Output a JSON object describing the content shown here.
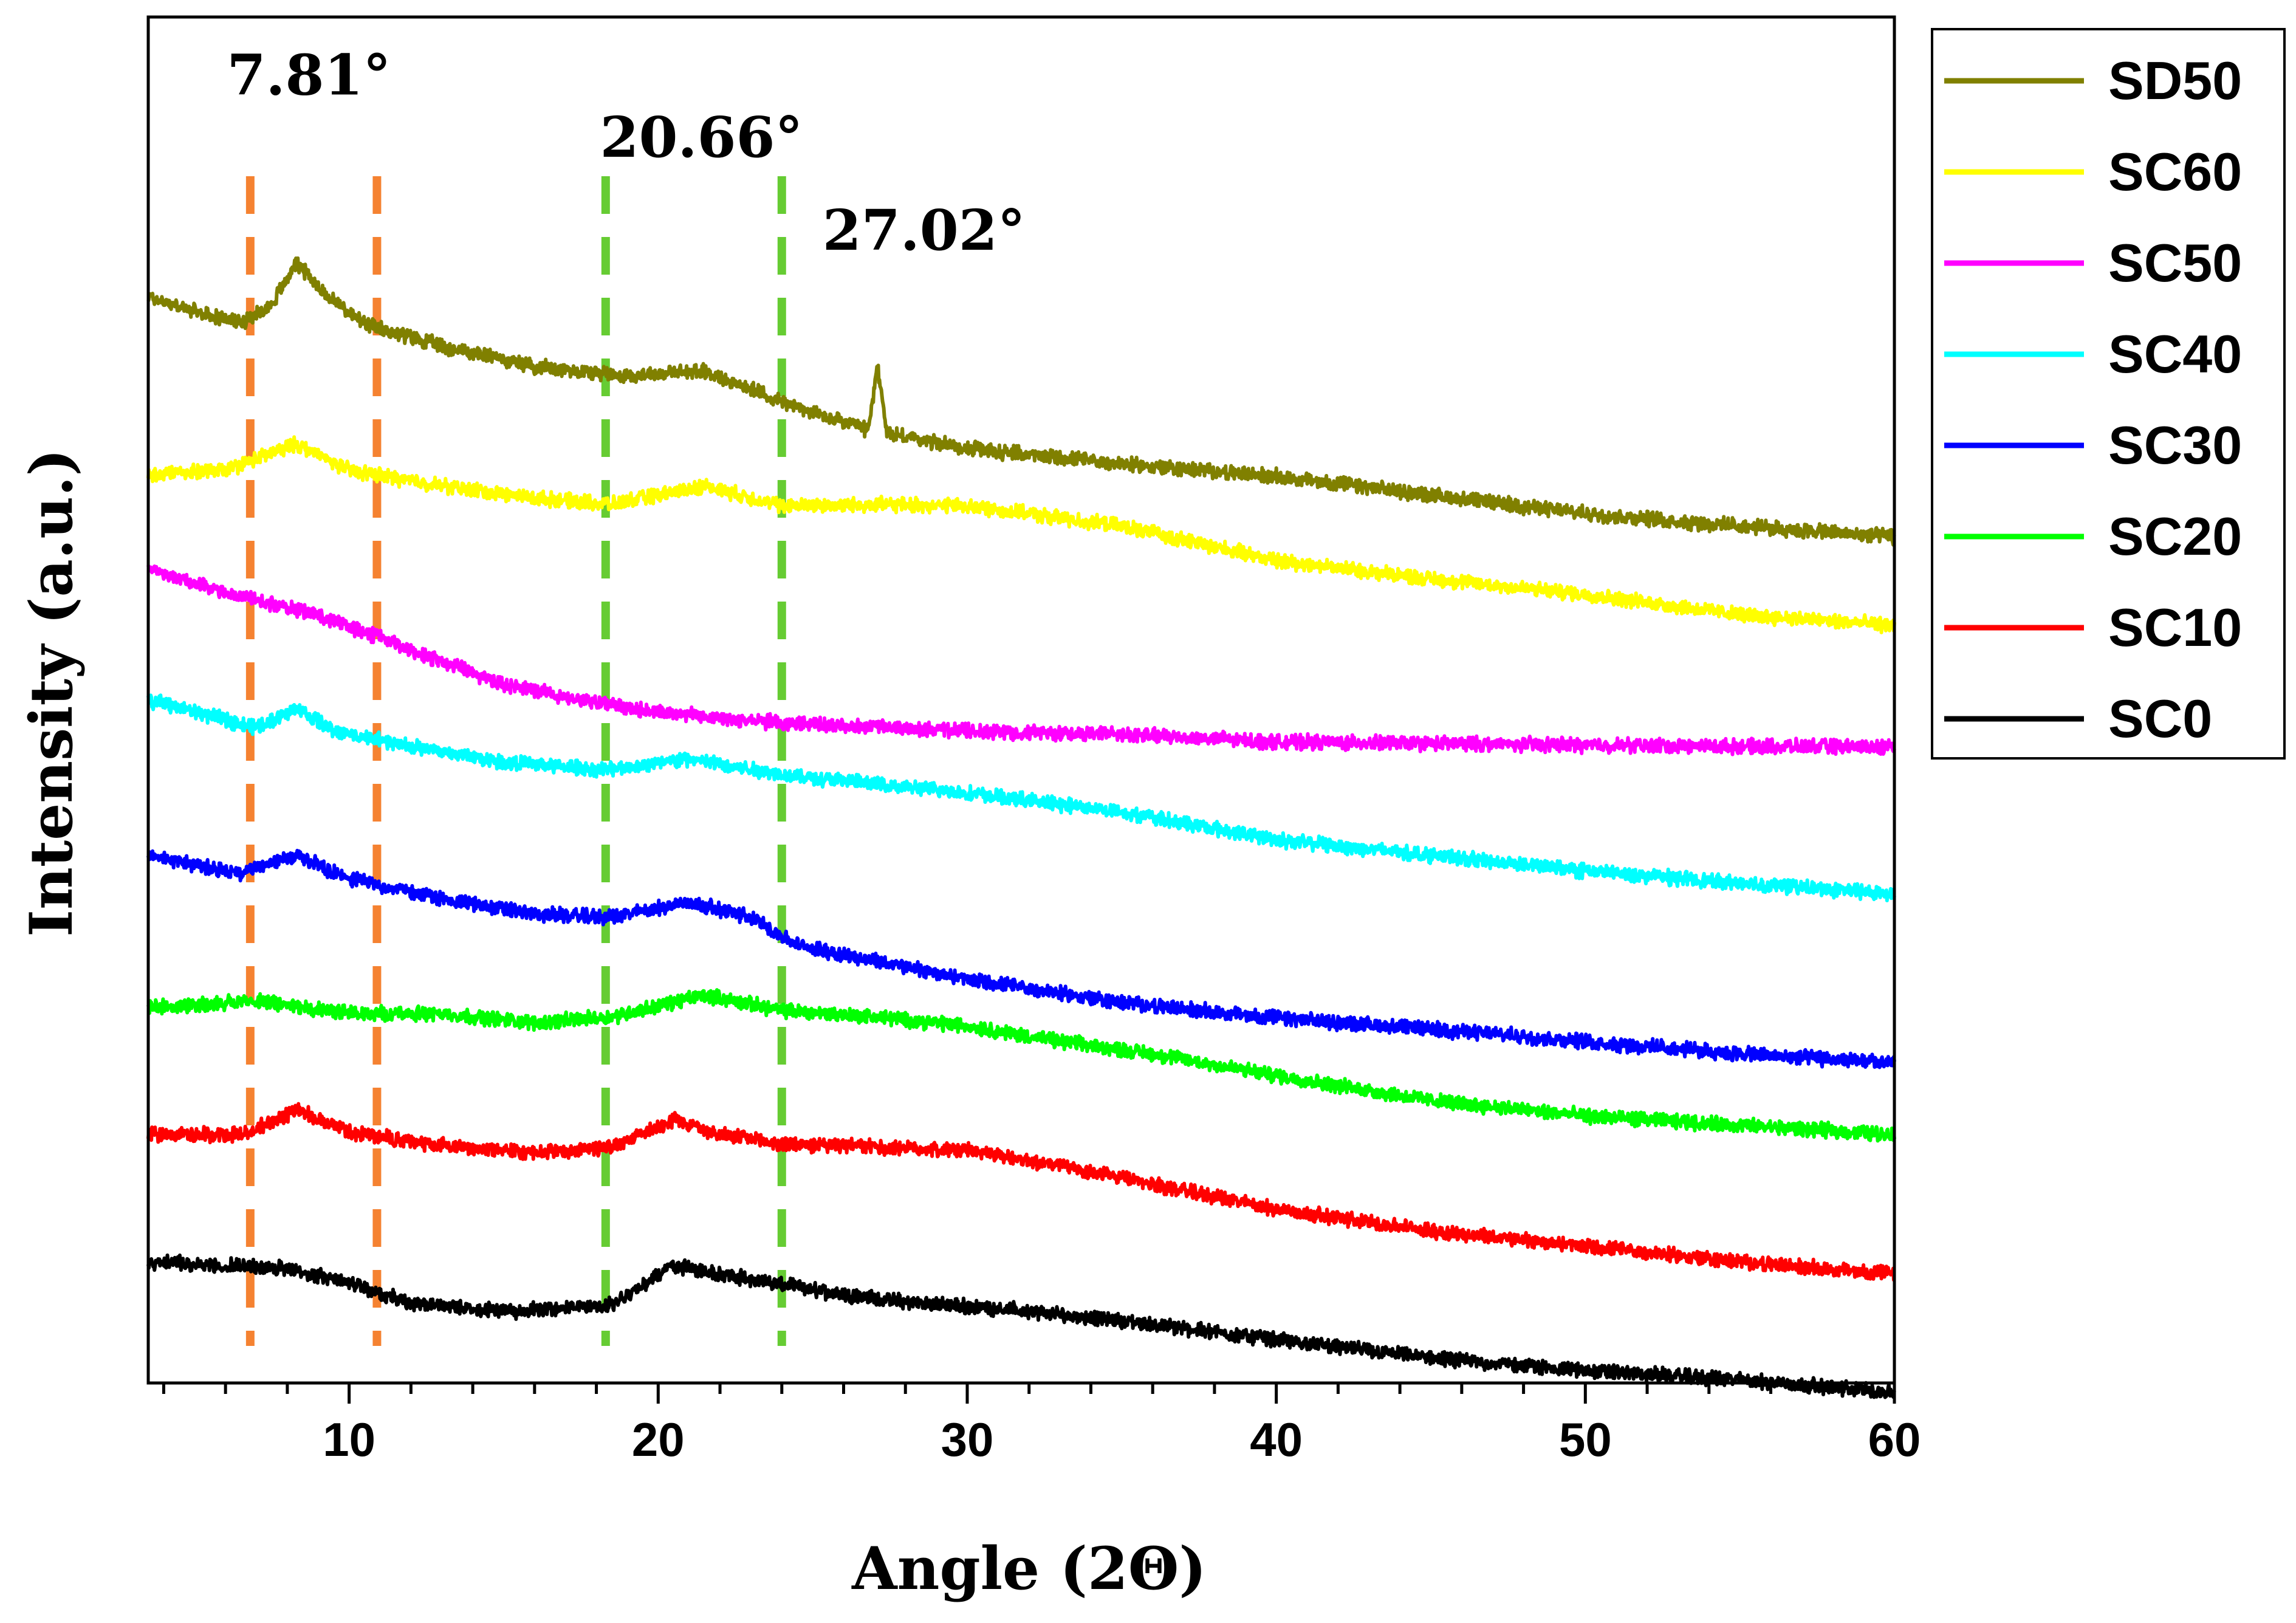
{
  "chart_data": {
    "type": "line",
    "title": "",
    "xlabel": "Angle (2Θ)",
    "ylabel": "Intensity (a.u.)",
    "xlim": [
      3.5,
      60
    ],
    "ylim": [
      0,
      8.8
    ],
    "x_ticks": [
      10,
      20,
      30,
      40,
      50,
      60
    ],
    "x_minor_step": 2,
    "y_ticks_shown": false,
    "grid": false,
    "legend_position": "outside-right-top",
    "annotations": [
      {
        "text": "7.81°",
        "x": 8.7,
        "y": 8.3
      },
      {
        "text": "20.66°",
        "x": 21.4,
        "y": 7.9
      },
      {
        "text": "27.02°",
        "x": 28.6,
        "y": 7.3
      }
    ],
    "reference_lines": [
      {
        "x": 6.8,
        "color": "#F58231",
        "style": "dashed"
      },
      {
        "x": 10.9,
        "color": "#F58231",
        "style": "dashed"
      },
      {
        "x": 18.3,
        "color": "#66CC33",
        "style": "dashed"
      },
      {
        "x": 24.0,
        "color": "#66CC33",
        "style": "dashed"
      }
    ],
    "series": [
      {
        "name": "SD50",
        "color": "#808000",
        "points": [
          [
            3.5,
            7.0
          ],
          [
            5,
            6.9
          ],
          [
            6.5,
            6.83
          ],
          [
            7.5,
            6.95
          ],
          [
            8.3,
            7.22
          ],
          [
            9.2,
            7.02
          ],
          [
            10.5,
            6.82
          ],
          [
            13,
            6.68
          ],
          [
            16,
            6.55
          ],
          [
            19,
            6.49
          ],
          [
            21.5,
            6.52
          ],
          [
            23,
            6.4
          ],
          [
            25,
            6.25
          ],
          [
            26.8,
            6.14
          ],
          [
            27.1,
            6.55
          ],
          [
            27.4,
            6.12
          ],
          [
            30,
            6.02
          ],
          [
            35,
            5.92
          ],
          [
            40,
            5.84
          ],
          [
            45,
            5.72
          ],
          [
            50,
            5.6
          ],
          [
            55,
            5.52
          ],
          [
            60,
            5.45
          ]
        ]
      },
      {
        "name": "SC60",
        "color": "#FFFF00",
        "points": [
          [
            3.5,
            5.85
          ],
          [
            6,
            5.88
          ],
          [
            8.3,
            6.05
          ],
          [
            10,
            5.88
          ],
          [
            13,
            5.78
          ],
          [
            16,
            5.7
          ],
          [
            18.5,
            5.66
          ],
          [
            21.5,
            5.78
          ],
          [
            24,
            5.65
          ],
          [
            27,
            5.66
          ],
          [
            30,
            5.65
          ],
          [
            35,
            5.52
          ],
          [
            40,
            5.3
          ],
          [
            45,
            5.18
          ],
          [
            50,
            5.08
          ],
          [
            55,
            4.95
          ],
          [
            60,
            4.88
          ]
        ]
      },
      {
        "name": "SC50",
        "color": "#FF00FF",
        "points": [
          [
            3.5,
            5.25
          ],
          [
            5,
            5.15
          ],
          [
            7,
            5.04
          ],
          [
            9,
            4.95
          ],
          [
            11,
            4.8
          ],
          [
            13,
            4.65
          ],
          [
            15,
            4.5
          ],
          [
            17,
            4.42
          ],
          [
            20,
            4.32
          ],
          [
            24,
            4.25
          ],
          [
            30,
            4.2
          ],
          [
            35,
            4.18
          ],
          [
            40,
            4.13
          ],
          [
            45,
            4.12
          ],
          [
            50,
            4.11
          ],
          [
            55,
            4.1
          ],
          [
            60,
            4.1
          ]
        ]
      },
      {
        "name": "SC40",
        "color": "#00FFFF",
        "points": [
          [
            3.5,
            4.4
          ],
          [
            5.5,
            4.3
          ],
          [
            7,
            4.22
          ],
          [
            8.3,
            4.35
          ],
          [
            9.5,
            4.2
          ],
          [
            12,
            4.1
          ],
          [
            15,
            4.0
          ],
          [
            18.3,
            3.95
          ],
          [
            21,
            4.02
          ],
          [
            24,
            3.92
          ],
          [
            27,
            3.86
          ],
          [
            30,
            3.8
          ],
          [
            35,
            3.68
          ],
          [
            40,
            3.5
          ],
          [
            45,
            3.4
          ],
          [
            50,
            3.3
          ],
          [
            55,
            3.22
          ],
          [
            60,
            3.15
          ]
        ]
      },
      {
        "name": "SC30",
        "color": "#0000FF",
        "points": [
          [
            3.5,
            3.4
          ],
          [
            6.5,
            3.28
          ],
          [
            8.3,
            3.4
          ],
          [
            10,
            3.25
          ],
          [
            13,
            3.12
          ],
          [
            16,
            3.02
          ],
          [
            18.5,
            3.0
          ],
          [
            21,
            3.1
          ],
          [
            23,
            3.0
          ],
          [
            24.5,
            2.82
          ],
          [
            27,
            2.72
          ],
          [
            30,
            2.6
          ],
          [
            35,
            2.45
          ],
          [
            40,
            2.35
          ],
          [
            45,
            2.28
          ],
          [
            50,
            2.2
          ],
          [
            55,
            2.12
          ],
          [
            60,
            2.06
          ]
        ]
      },
      {
        "name": "SC20",
        "color": "#00FF00",
        "points": [
          [
            3.5,
            2.42
          ],
          [
            7,
            2.46
          ],
          [
            10,
            2.38
          ],
          [
            13,
            2.38
          ],
          [
            16,
            2.32
          ],
          [
            18.5,
            2.36
          ],
          [
            21.5,
            2.5
          ],
          [
            24,
            2.4
          ],
          [
            27,
            2.36
          ],
          [
            30,
            2.3
          ],
          [
            33,
            2.2
          ],
          [
            36,
            2.12
          ],
          [
            40,
            1.98
          ],
          [
            45,
            1.82
          ],
          [
            50,
            1.72
          ],
          [
            55,
            1.66
          ],
          [
            60,
            1.6
          ]
        ]
      },
      {
        "name": "SC10",
        "color": "#FF0000",
        "points": [
          [
            3.5,
            1.6
          ],
          [
            6.5,
            1.6
          ],
          [
            8.3,
            1.76
          ],
          [
            10,
            1.62
          ],
          [
            12,
            1.55
          ],
          [
            14,
            1.52
          ],
          [
            16,
            1.48
          ],
          [
            18.5,
            1.52
          ],
          [
            20.5,
            1.7
          ],
          [
            22,
            1.6
          ],
          [
            24,
            1.54
          ],
          [
            27,
            1.52
          ],
          [
            30,
            1.5
          ],
          [
            33,
            1.4
          ],
          [
            37,
            1.24
          ],
          [
            40,
            1.12
          ],
          [
            45,
            0.98
          ],
          [
            50,
            0.88
          ],
          [
            55,
            0.78
          ],
          [
            60,
            0.7
          ]
        ]
      },
      {
        "name": "SC0",
        "color": "#000000",
        "points": [
          [
            3.5,
            0.78
          ],
          [
            5.5,
            0.76
          ],
          [
            8,
            0.74
          ],
          [
            10,
            0.64
          ],
          [
            12,
            0.52
          ],
          [
            15,
            0.46
          ],
          [
            18.5,
            0.5
          ],
          [
            20.5,
            0.76
          ],
          [
            22,
            0.7
          ],
          [
            25,
            0.6
          ],
          [
            28,
            0.52
          ],
          [
            31,
            0.48
          ],
          [
            35,
            0.4
          ],
          [
            40,
            0.28
          ],
          [
            45,
            0.16
          ],
          [
            50,
            0.08
          ],
          [
            55,
            0.02
          ],
          [
            60,
            -0.06
          ]
        ]
      }
    ]
  }
}
